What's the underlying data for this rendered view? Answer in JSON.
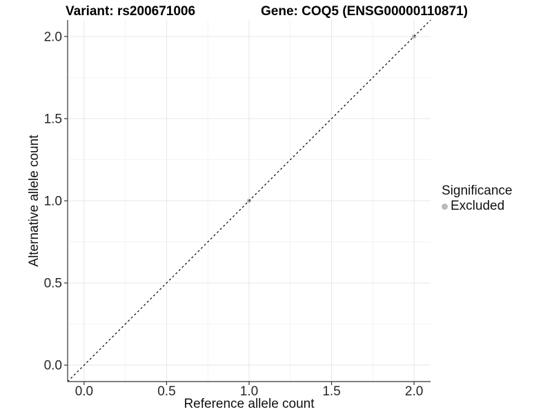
{
  "figure": {
    "kind": "ggplot-style scatter plot",
    "background": "#ffffff"
  },
  "titles": {
    "variant": "Variant: rs200671006",
    "gene": "Gene: COQ5 (ENSG00000110871)"
  },
  "chart_data": {
    "type": "scatter",
    "title_left": "Variant: rs200671006",
    "title_right": "Gene: COQ5 (ENSG00000110871)",
    "xlabel": "Reference allele count",
    "ylabel": "Alternative allele count",
    "xlim": [
      -0.1,
      2.1
    ],
    "ylim": [
      -0.1,
      2.1
    ],
    "x_ticks": [
      0.0,
      0.5,
      1.0,
      1.5,
      2.0
    ],
    "y_ticks": [
      0.0,
      0.5,
      1.0,
      1.5,
      2.0
    ],
    "x_tick_labels": [
      "0.0",
      "0.5",
      "1.0",
      "1.5",
      "2.0"
    ],
    "y_tick_labels": [
      "0.0",
      "0.5",
      "1.0",
      "1.5",
      "2.0"
    ],
    "x_minor": [
      0.25,
      0.75,
      1.25,
      1.75
    ],
    "y_minor": [
      0.25,
      0.75,
      1.25,
      1.75
    ],
    "grid": true,
    "abline": {
      "slope": 1,
      "intercept": 0,
      "linetype": "dashed",
      "color": "#000000"
    },
    "series": [
      {
        "name": "Excluded",
        "color": "#bdbdbd",
        "points": [
          [
            1.0,
            1.0
          ],
          [
            2.0,
            2.0
          ]
        ]
      }
    ],
    "legend": {
      "position": "right",
      "title": "Significance",
      "items": [
        {
          "label": "Excluded",
          "color": "#bababa",
          "marker": "circle"
        }
      ]
    },
    "colors": {
      "grid_major": "#e6e6e6",
      "grid_minor": "#f3f3f3",
      "axis_line": "#333333",
      "tick_mark": "#333333",
      "tick_label": "#262626",
      "identity_line": "#000000"
    }
  }
}
